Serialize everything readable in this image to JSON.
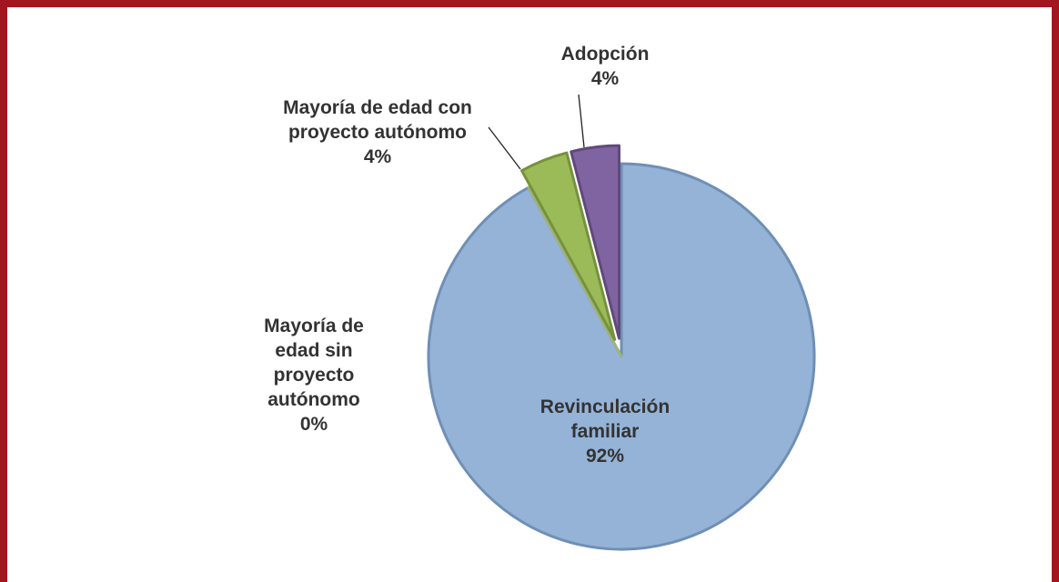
{
  "chart_data": {
    "type": "pie",
    "categories": [
      "Revinculación familiar",
      "Mayoría de edad sin proyecto autónomo",
      "Mayoría de edad con proyecto autónomo",
      "Adopción"
    ],
    "values": [
      92,
      0,
      4,
      4
    ],
    "value_labels": [
      "92%",
      "0%",
      "4%",
      "4%"
    ],
    "colors": [
      "#95b3d7",
      "#c3d69b",
      "#9bbb59",
      "#8064a2"
    ]
  }
}
